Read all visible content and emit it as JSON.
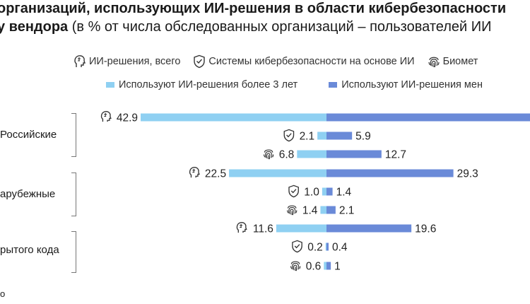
{
  "title": {
    "line1": "организаций, использующих ИИ-решения в области кибербезопасности",
    "line2_bold": "у вендора",
    "line2_rest": " (в % от числа обследованных организаций – пользователей ИИ"
  },
  "legend": {
    "types": [
      {
        "label": "ИИ-решения, всего",
        "icon": "ai-head-icon"
      },
      {
        "label": "Системы кибербезопасности на основе ИИ",
        "icon": "shield-icon"
      },
      {
        "label": "Биомет",
        "icon": "fingerprint-icon"
      }
    ],
    "series": [
      {
        "label": "Используют ИИ-решения более 3 лет",
        "color": "#8fd0f2"
      },
      {
        "label": "Используют ИИ-решения мен",
        "color": "#6a8ad8"
      }
    ]
  },
  "colors": {
    "left": "#8fd0f2",
    "right": "#6a8ad8",
    "bracket": "#777777"
  },
  "groups": [
    {
      "label": "Российские"
    },
    {
      "label": "арубежные"
    },
    {
      "label": "рытого кода"
    }
  ],
  "footnote": "о",
  "chart_data": {
    "type": "bar",
    "orientation": "horizontal-diverging",
    "series_names": [
      "Используют ИИ-решения более 3 лет",
      "Используют ИИ-решения мен"
    ],
    "rows": [
      {
        "group": "Российские",
        "kind": "ai-head-icon",
        "left": 42.9,
        "right": null
      },
      {
        "group": "Российские",
        "kind": "shield-icon",
        "left": 2.1,
        "right": 5.9
      },
      {
        "group": "Российские",
        "kind": "fingerprint-icon",
        "left": 6.8,
        "right": 12.7
      },
      {
        "group": "арубежные",
        "kind": "ai-head-icon",
        "left": 22.5,
        "right": 29.3
      },
      {
        "group": "арубежные",
        "kind": "shield-icon",
        "left": 1.0,
        "right": 1.4
      },
      {
        "group": "арубежные",
        "kind": "fingerprint-icon",
        "left": 1.4,
        "right": 2.1
      },
      {
        "group": "рытого кода",
        "kind": "ai-head-icon",
        "left": 11.6,
        "right": 19.6
      },
      {
        "group": "рытого кода",
        "kind": "shield-icon",
        "left": 0.2,
        "right": 0.4
      },
      {
        "group": "рытого кода",
        "kind": "fingerprint-icon",
        "left": 0.6,
        "right": 1
      }
    ],
    "labels": {
      "left": [
        "42.9",
        "2.1",
        "6.8",
        "22.5",
        "1.0",
        "1.4",
        "11.6",
        "0.2",
        "0.6"
      ],
      "right": [
        "",
        "5.9",
        "12.7",
        "29.3",
        "1.4",
        "2.1",
        "19.6",
        "0.4",
        "1"
      ]
    }
  }
}
